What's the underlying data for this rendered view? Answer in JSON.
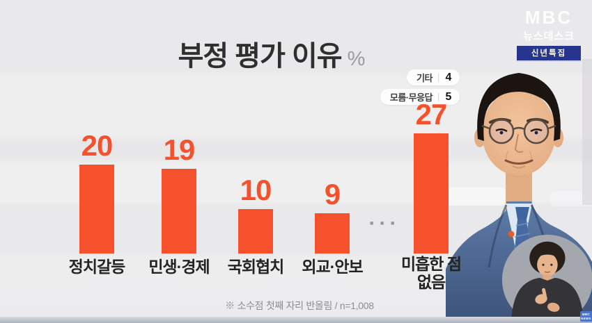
{
  "header": {
    "channel": "MBC",
    "program": "뉴스데스크",
    "badge": "신년특집"
  },
  "chart_data": {
    "type": "bar",
    "title": "부정 평가 이유",
    "unit": "%",
    "categories": [
      "정치갈등",
      "민생·경제",
      "국회협치",
      "외교·안보",
      "미흡한 점 없음"
    ],
    "values": [
      20,
      19,
      10,
      9,
      27
    ],
    "bar_color": "#F4512C",
    "ylim": [
      0,
      30
    ],
    "grid": false,
    "side_entries": [
      {
        "label": "기타",
        "value": 4
      },
      {
        "label": "모름·무응답",
        "value": 5
      }
    ],
    "continuation_mark": "···",
    "footnote": "※ 소수점 첫째 자리 반올림 / n=1,008"
  },
  "watermark": {
    "line1": "MBC",
    "line2": "NEWS"
  }
}
